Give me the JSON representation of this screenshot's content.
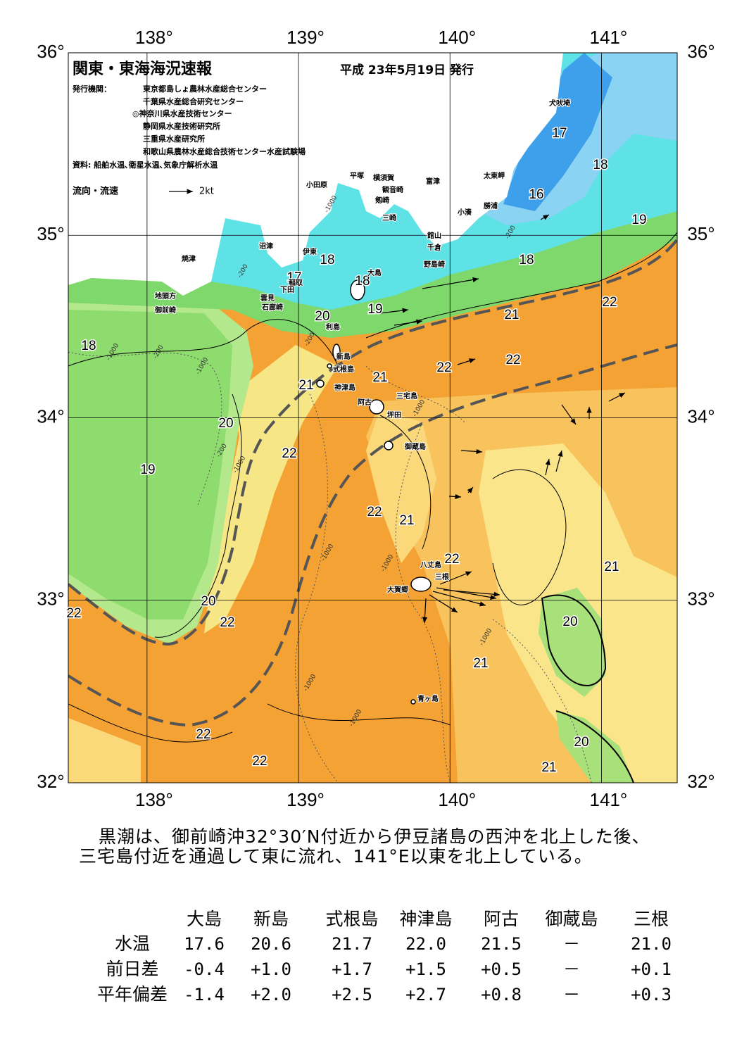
{
  "header": {
    "title": "関東・東海海況速報",
    "date": "平成 23年5月19日 発行",
    "issuer_label": "発行機関：",
    "issuers": [
      "東京都島しょ農林水産総合センター",
      "千葉県水産総合研究センター",
      "◎神奈川県水産技術センター",
      "静岡県水産技術研究所",
      "三重県水産研究所",
      "和歌山県農林水産総合技術センター水産試験場"
    ],
    "source": "資料: 船舶水温､衛星水温､気象庁解析水温",
    "legend": {
      "label": "流向・流速",
      "scale": "2kt"
    }
  },
  "map": {
    "lonlim": [
      137.48,
      141.5
    ],
    "latlim": [
      32,
      36
    ],
    "lon_ticks": [
      {
        "value": 138,
        "label": "138°"
      },
      {
        "value": 139,
        "label": "139°"
      },
      {
        "value": 140,
        "label": "140°"
      },
      {
        "value": 141,
        "label": "141°"
      }
    ],
    "lat_ticks": [
      {
        "value": 36,
        "label": "36°"
      },
      {
        "value": 35,
        "label": "35°"
      },
      {
        "value": 34,
        "label": "34°"
      },
      {
        "value": 33,
        "label": "33°"
      },
      {
        "value": 32,
        "label": "32°"
      }
    ],
    "temperature_labels": [
      "17",
      "18",
      "16",
      "19",
      "18",
      "18",
      "17",
      "18",
      "19",
      "20",
      "21",
      "22",
      "22",
      "22",
      "18",
      "21",
      "21",
      "20",
      "22",
      "19",
      "22",
      "21",
      "22",
      "21",
      "20",
      "22",
      "22",
      "20",
      "21",
      "20",
      "22",
      "22",
      "21"
    ],
    "place_names": [
      "犬吠埼",
      "太東岬",
      "勝浦",
      "小湊",
      "富津",
      "横須賀",
      "観音崎",
      "剱崎",
      "三崎",
      "平塚",
      "小田原",
      "館山",
      "千倉",
      "野島崎",
      "沼津",
      "伊東",
      "焼津",
      "大島",
      "稲取",
      "下田",
      "雲見",
      "石廊崎",
      "地頭方",
      "御前崎",
      "利島",
      "新島",
      "式根島",
      "神津島",
      "阿古",
      "三宅島",
      "坪田",
      "御蔵島",
      "八丈島",
      "三根",
      "大賀郷",
      "青ヶ島"
    ],
    "depth_labels": [
      "-1000",
      "-200",
      "-200",
      "-1000",
      "-200",
      "-1000",
      "-200",
      "-1000",
      "-1000",
      "-1000",
      "-1000",
      "-1000",
      "-1000",
      "-1000",
      "-200"
    ]
  },
  "summary": [
    "黒潮は、御前崎沖32°30′N付近から伊豆諸島の西沖を北上した後、",
    "三宅島付近を通過して東に流れ、141°E以東を北上している。"
  ],
  "table": {
    "columns": [
      "大島",
      "新島",
      "式根島",
      "神津島",
      "阿古",
      "御蔵島",
      "三根"
    ],
    "rows": [
      {
        "label": "水温",
        "cells": [
          "17.6",
          "20.6",
          "21.7",
          "22.0",
          "21.5",
          "－",
          "21.0"
        ]
      },
      {
        "label": "前日差",
        "cells": [
          "-0.4",
          "+1.0",
          "+1.7",
          "+1.5",
          "+0.5",
          "－",
          "+0.1"
        ]
      },
      {
        "label": "平年偏差",
        "cells": [
          "-1.4",
          "+2.0",
          "+2.5",
          "+2.7",
          "+0.8",
          "－",
          "+0.3"
        ]
      }
    ]
  }
}
